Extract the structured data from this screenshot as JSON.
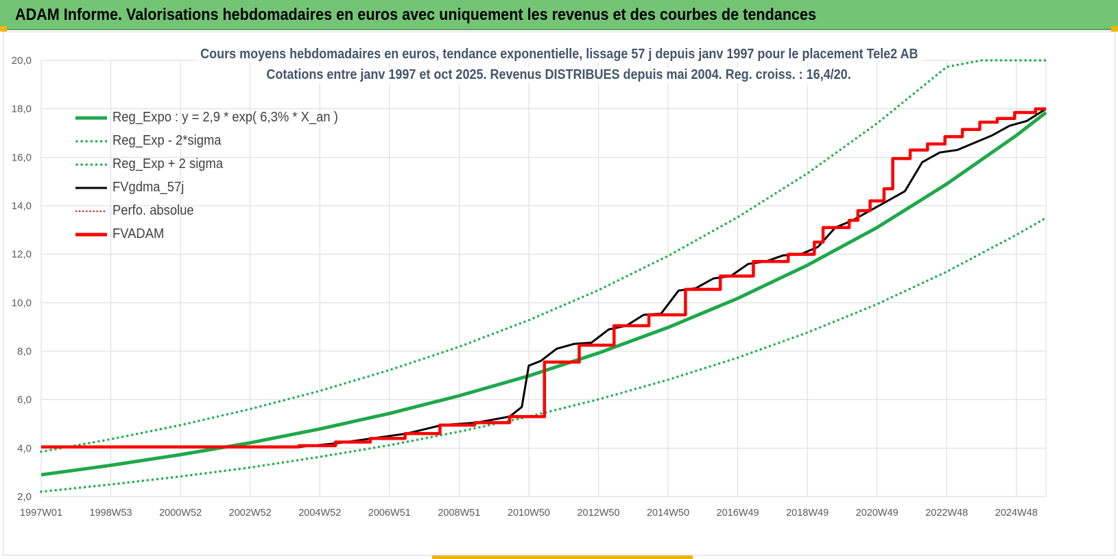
{
  "header": {
    "title": "ADAM Informe. Valorisations hebdomadaires en euros avec uniquement les revenus et des courbes de tendances"
  },
  "colors": {
    "header_bg": "#74c476",
    "regexpo": "#1fa84a",
    "band": "#22b14c",
    "fvgdma": "#000000",
    "perfo": "#e31a1c",
    "fvadam": "#ff0000",
    "grid": "#d9d9d9",
    "corner": "#f0b400"
  },
  "chart_data": {
    "type": "line",
    "title_line1": "Cours moyens hebdomadaires en euros, tendance exponentielle, lissage 57 j depuis janv 1997 pour le placement Tele2 AB",
    "title_line2": "Cotations entre janv 1997 et oct 2025. Revenus DISTRIBUES depuis mai 2004. Reg. croiss. : 16,4/20.",
    "xlabel": "",
    "ylabel": "",
    "ylim": [
      2,
      20
    ],
    "xlim": [
      1997.0,
      2025.85
    ],
    "y_ticks": [
      "2,0",
      "4,0",
      "6,0",
      "8,0",
      "10,0",
      "12,0",
      "14,0",
      "16,0",
      "18,0",
      "20,0"
    ],
    "x_ticks": [
      {
        "label": "1997W01",
        "x": 1997.0
      },
      {
        "label": "1998W53",
        "x": 1999.0
      },
      {
        "label": "2000W52",
        "x": 2001.0
      },
      {
        "label": "2002W52",
        "x": 2003.0
      },
      {
        "label": "2004W52",
        "x": 2005.0
      },
      {
        "label": "2006W51",
        "x": 2007.0
      },
      {
        "label": "2008W51",
        "x": 2009.0
      },
      {
        "label": "2010W50",
        "x": 2011.0
      },
      {
        "label": "2012W50",
        "x": 2013.0
      },
      {
        "label": "2014W50",
        "x": 2015.0
      },
      {
        "label": "2016W49",
        "x": 2017.0
      },
      {
        "label": "2018W49",
        "x": 2019.0
      },
      {
        "label": "2020W49",
        "x": 2021.0
      },
      {
        "label": "2022W48",
        "x": 2023.0
      },
      {
        "label": "2024W48",
        "x": 2025.0
      }
    ],
    "grid": true,
    "legend_position": "top-left",
    "series": [
      {
        "name": "Reg_Expo : y = 2,9 * exp( 6,3% *  X_an )",
        "style": "solid-thick",
        "color": "#1fa84a",
        "x": [
          1997.0,
          1999.0,
          2001.0,
          2003.0,
          2005.0,
          2007.0,
          2009.0,
          2011.0,
          2013.0,
          2015.0,
          2017.0,
          2019.0,
          2021.0,
          2023.0,
          2025.0,
          2025.85
        ],
        "y": [
          2.9,
          3.29,
          3.73,
          4.22,
          4.79,
          5.43,
          6.16,
          6.98,
          7.92,
          8.98,
          10.18,
          11.55,
          13.1,
          14.9,
          16.9,
          17.85
        ]
      },
      {
        "name": "Reg_Exp - 2*sigma",
        "style": "dotted",
        "color": "#22b14c",
        "x": [
          1997.0,
          1999.0,
          2001.0,
          2003.0,
          2005.0,
          2007.0,
          2009.0,
          2011.0,
          2013.0,
          2015.0,
          2017.0,
          2019.0,
          2021.0,
          2023.0,
          2025.0,
          2025.85
        ],
        "y": [
          2.2,
          2.5,
          2.83,
          3.2,
          3.64,
          4.12,
          4.68,
          5.3,
          6.01,
          6.82,
          7.73,
          8.77,
          9.94,
          11.28,
          12.8,
          13.5
        ]
      },
      {
        "name": "Reg_Exp + 2 sigma",
        "style": "dotted",
        "color": "#22b14c",
        "x": [
          1997.0,
          1999.0,
          2001.0,
          2003.0,
          2005.0,
          2007.0,
          2009.0,
          2011.0,
          2013.0,
          2015.0,
          2017.0,
          2019.0,
          2021.0,
          2023.0,
          2024.0,
          2025.85
        ],
        "y": [
          3.85,
          4.37,
          4.95,
          5.61,
          6.36,
          7.22,
          8.18,
          9.28,
          10.52,
          11.93,
          13.53,
          15.34,
          17.4,
          19.73,
          20.0,
          20.0
        ]
      },
      {
        "name": "FVgdma_57j",
        "style": "solid",
        "color": "#000000",
        "x": [
          1997.0,
          2004.4,
          2005.5,
          2006.5,
          2007.5,
          2008.5,
          2009.5,
          2010.45,
          2010.8,
          2011.0,
          2011.35,
          2011.8,
          2012.3,
          2012.8,
          2013.3,
          2013.8,
          2014.3,
          2014.8,
          2015.3,
          2015.8,
          2016.3,
          2016.8,
          2017.3,
          2017.8,
          2018.3,
          2018.8,
          2019.3,
          2019.8,
          2020.3,
          2020.8,
          2021.3,
          2021.8,
          2022.3,
          2022.8,
          2023.3,
          2023.8,
          2024.3,
          2024.8,
          2025.3,
          2025.85
        ],
        "y": [
          4.05,
          4.05,
          4.2,
          4.4,
          4.6,
          4.95,
          5.05,
          5.3,
          5.7,
          7.4,
          7.6,
          8.1,
          8.3,
          8.35,
          8.9,
          9.05,
          9.5,
          9.55,
          10.5,
          10.6,
          11.0,
          11.1,
          11.6,
          11.7,
          11.95,
          12.0,
          12.3,
          13.1,
          13.4,
          13.8,
          14.2,
          14.6,
          15.8,
          16.2,
          16.3,
          16.6,
          16.9,
          17.3,
          17.5,
          18.0
        ]
      },
      {
        "name": "Perfo. absolue",
        "style": "dotted",
        "color": "#e31a1c",
        "x": [],
        "y": []
      },
      {
        "name": "FVADAM",
        "style": "step-thick",
        "color": "#ff0000",
        "x": [
          1997.0,
          2004.4,
          2004.4,
          2005.45,
          2005.45,
          2006.45,
          2006.45,
          2007.45,
          2007.45,
          2008.45,
          2008.45,
          2009.45,
          2009.45,
          2010.45,
          2010.45,
          2011.45,
          2011.45,
          2012.45,
          2012.45,
          2013.45,
          2013.45,
          2014.45,
          2014.45,
          2015.5,
          2015.5,
          2016.5,
          2016.5,
          2017.45,
          2017.45,
          2018.45,
          2018.45,
          2019.2,
          2019.2,
          2019.45,
          2019.45,
          2020.2,
          2020.2,
          2020.45,
          2020.45,
          2020.8,
          2020.8,
          2021.2,
          2021.2,
          2021.45,
          2021.45,
          2021.95,
          2021.95,
          2022.45,
          2022.45,
          2022.95,
          2022.95,
          2023.45,
          2023.45,
          2023.95,
          2023.95,
          2024.45,
          2024.45,
          2024.95,
          2024.95,
          2025.55,
          2025.55,
          2025.85
        ],
        "y": [
          4.05,
          4.05,
          4.1,
          4.1,
          4.25,
          4.25,
          4.4,
          4.4,
          4.6,
          4.6,
          4.95,
          4.95,
          5.05,
          5.05,
          5.3,
          5.3,
          7.55,
          7.55,
          8.25,
          8.25,
          9.05,
          9.05,
          9.5,
          9.5,
          10.55,
          10.55,
          11.1,
          11.1,
          11.7,
          11.7,
          12.0,
          12.0,
          12.5,
          12.5,
          13.1,
          13.1,
          13.4,
          13.4,
          13.8,
          13.8,
          14.2,
          14.2,
          14.7,
          14.7,
          15.95,
          15.95,
          16.3,
          16.3,
          16.55,
          16.55,
          16.85,
          16.85,
          17.15,
          17.15,
          17.45,
          17.45,
          17.6,
          17.6,
          17.85,
          17.85,
          18.0,
          18.0
        ]
      }
    ]
  }
}
